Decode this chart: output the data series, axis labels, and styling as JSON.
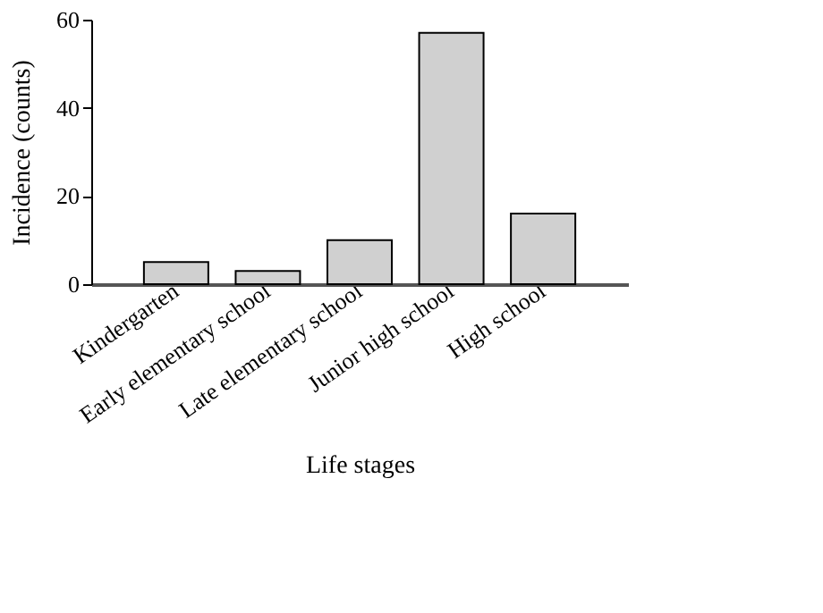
{
  "chart_data": {
    "type": "bar",
    "xlabel": "Life stages",
    "ylabel": "Incidence (counts)",
    "categories": [
      "Kindergarten",
      "Early elementary school",
      "Late elementary school",
      "Junior high school",
      "High school"
    ],
    "values": [
      5,
      3,
      10,
      57,
      16
    ],
    "color": "#d0d0d0",
    "ylim": [
      0,
      60
    ],
    "yticks": [
      0,
      20,
      40,
      60
    ],
    "grid": false
  }
}
